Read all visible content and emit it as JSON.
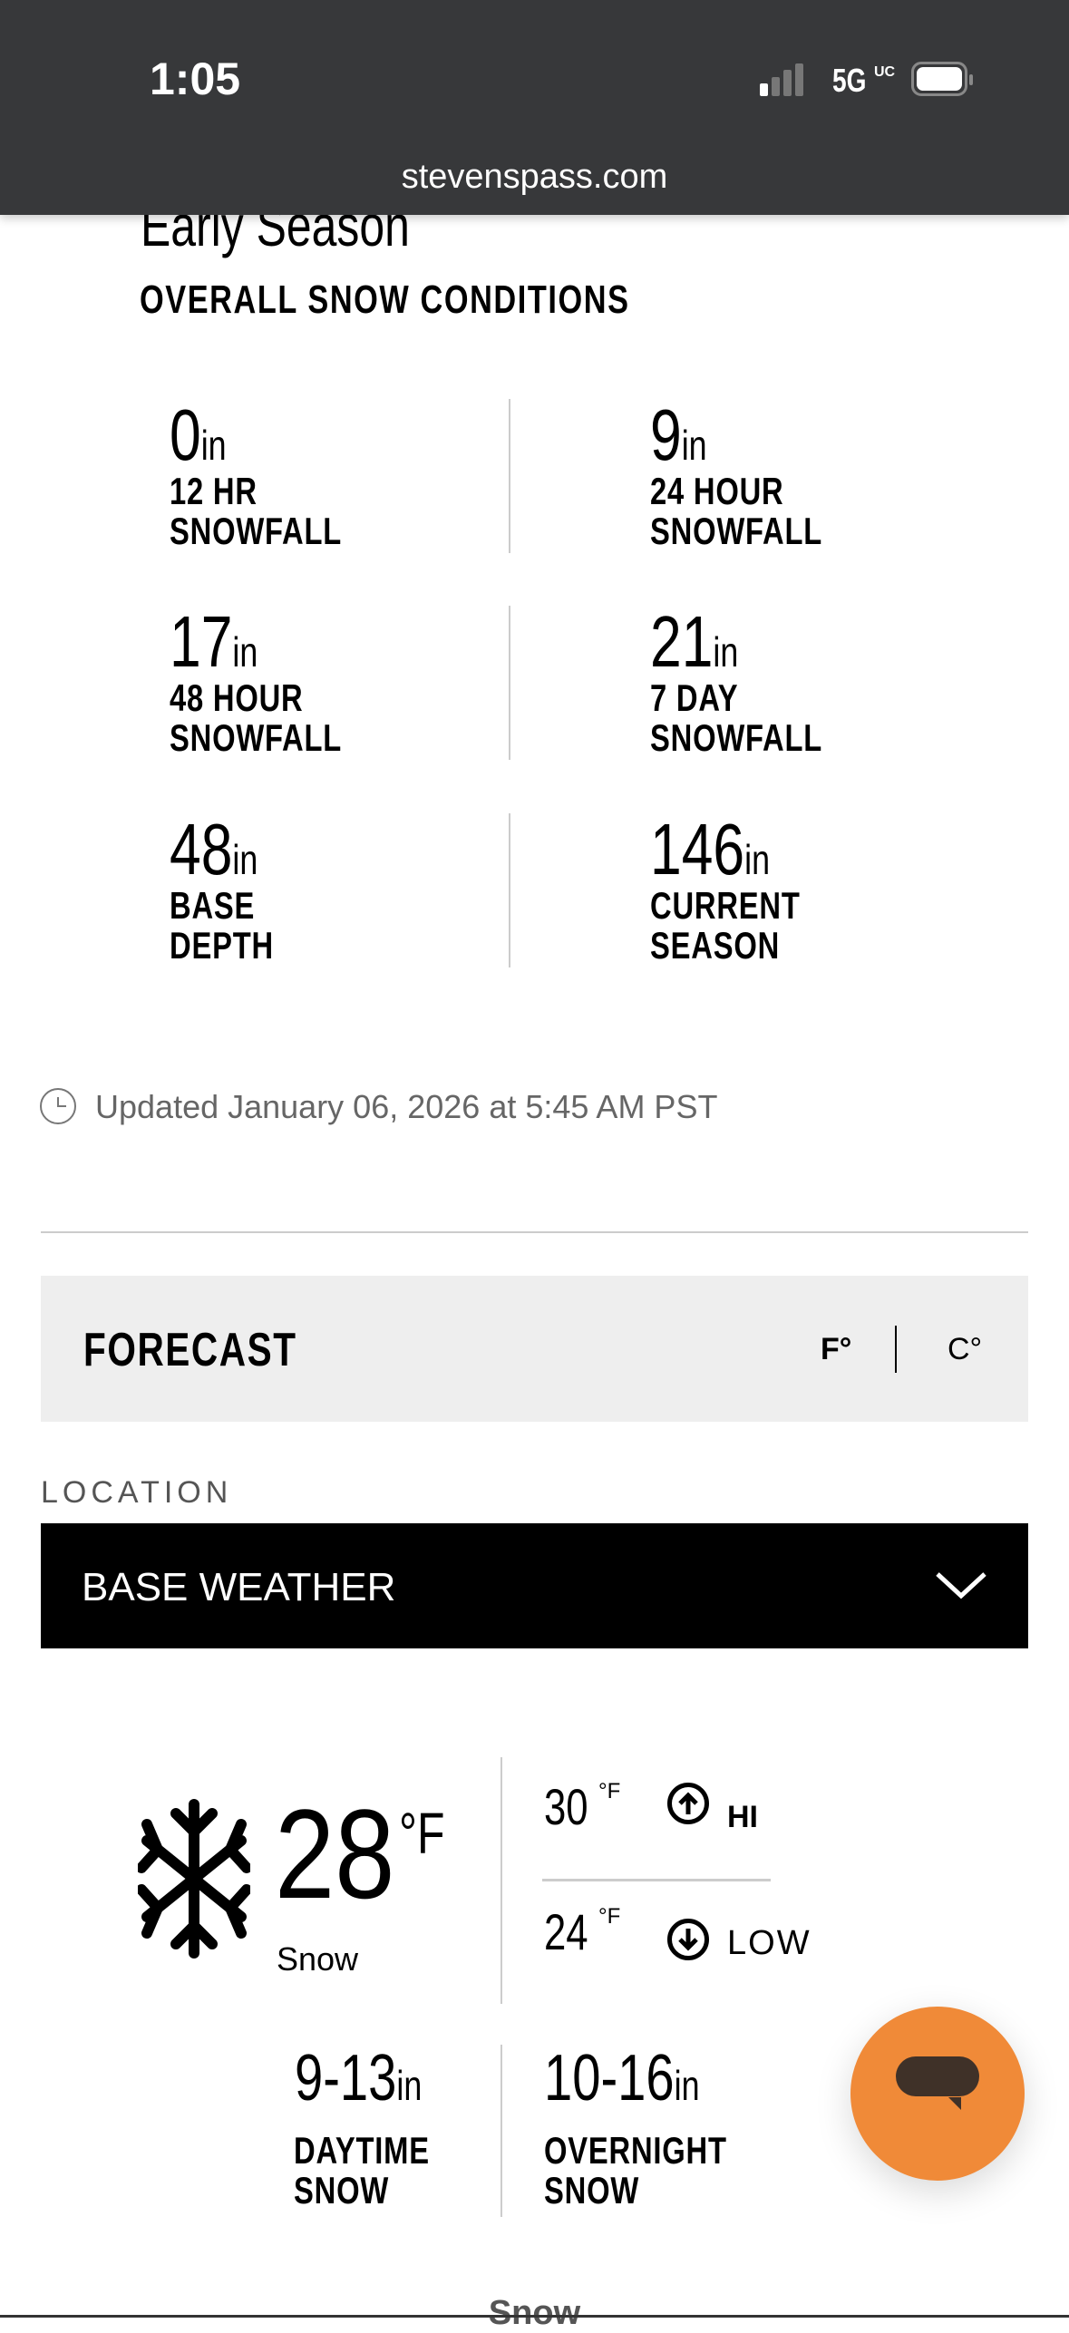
{
  "status_bar": {
    "time": "1:05",
    "network": "5G",
    "network_suffix": "UC",
    "url": "stevenspass.com"
  },
  "conditions": {
    "season_status": "Early Season",
    "heading": "OVERALL SNOW CONDITIONS",
    "stats": [
      {
        "value": "0",
        "unit": "in",
        "label1": "12 HR",
        "label2": "SNOWFALL"
      },
      {
        "value": "9",
        "unit": "in",
        "label1": "24 HOUR",
        "label2": "SNOWFALL"
      },
      {
        "value": "17",
        "unit": "in",
        "label1": "48 HOUR",
        "label2": "SNOWFALL"
      },
      {
        "value": "21",
        "unit": "in",
        "label1": "7 DAY",
        "label2": "SNOWFALL"
      },
      {
        "value": "48",
        "unit": "in",
        "label1": "BASE",
        "label2": "DEPTH"
      },
      {
        "value": "146",
        "unit": "in",
        "label1": "CURRENT",
        "label2": "SEASON"
      }
    ],
    "updated": "Updated January 06, 2026 at 5:45 AM PST"
  },
  "forecast": {
    "title": "FORECAST",
    "unit_f": "F°",
    "unit_c": "C°",
    "location_label": "LOCATION",
    "location_value": "BASE WEATHER",
    "current_temp": "28",
    "temp_unit": "°F",
    "condition": "Snow",
    "condition_icon": "snowflake-icon",
    "hi": "30",
    "hi_unit": "°F",
    "hi_label": "HI",
    "low": "24",
    "low_unit": "°F",
    "low_label": "LOW",
    "daytime_snow": "9-13",
    "daytime_unit": "in",
    "daytime_label1": "DAYTIME",
    "daytime_label2": "SNOW",
    "overnight_snow": "10-16",
    "overnight_unit": "in",
    "overnight_label1": "OVERNIGHT",
    "overnight_label2": "SNOW",
    "next_condition": "Snow"
  },
  "colors": {
    "accent": "#f08a38",
    "status_bar": "#37383a",
    "forecast_bar": "#eeeeee"
  }
}
